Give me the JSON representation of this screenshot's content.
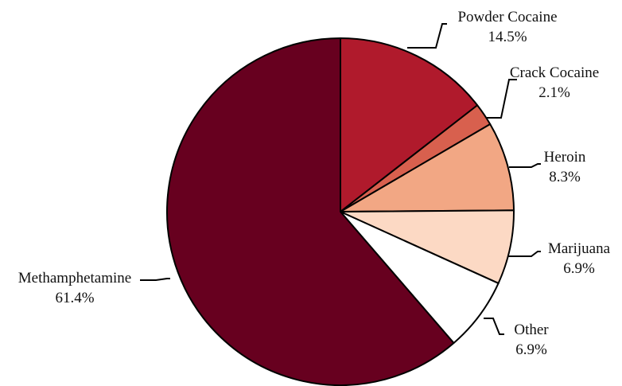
{
  "chart_data": {
    "type": "pie",
    "title": "",
    "start_angle_deg": 0,
    "direction": "clockwise",
    "slices": [
      {
        "label": "Powder Cocaine",
        "value": 14.5,
        "value_label": "14.5%",
        "color": "#b01a2c"
      },
      {
        "label": "Crack Cocaine",
        "value": 2.1,
        "value_label": "2.1%",
        "color": "#d8604e"
      },
      {
        "label": "Heroin",
        "value": 8.3,
        "value_label": "8.3%",
        "color": "#f2a784"
      },
      {
        "label": "Marijuana",
        "value": 6.9,
        "value_label": "6.9%",
        "color": "#fcd9c4"
      },
      {
        "label": "Other",
        "value": 6.9,
        "value_label": "6.9%",
        "color": "#ffffff"
      },
      {
        "label": "Methamphetamine",
        "value": 61.4,
        "value_label": "61.4%",
        "color": "#67001f"
      }
    ]
  }
}
